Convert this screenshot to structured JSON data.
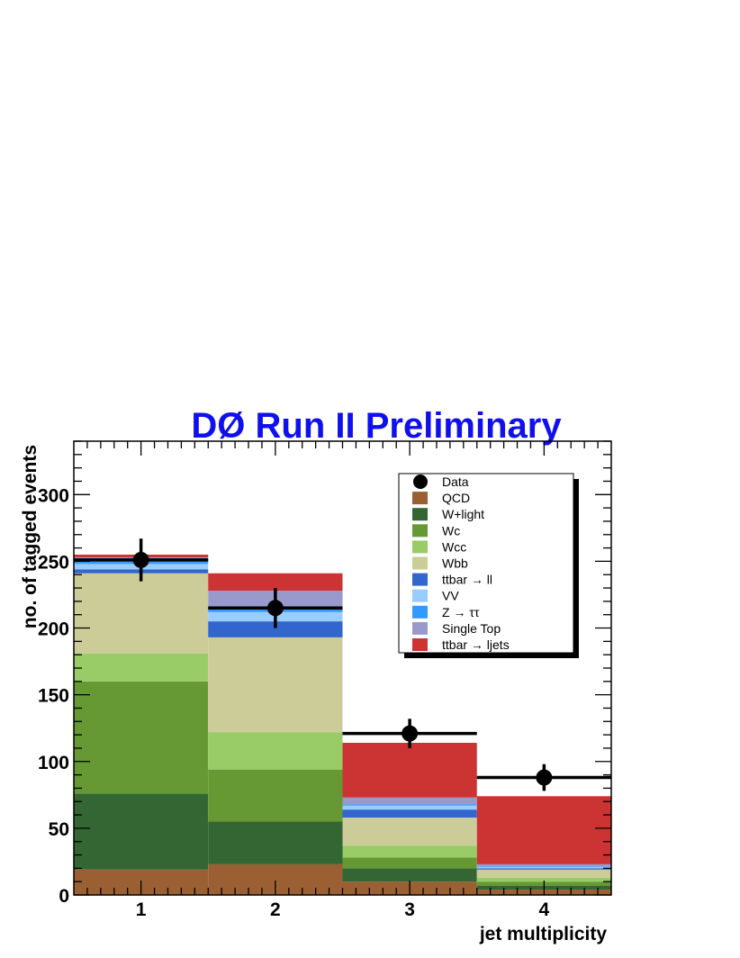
{
  "chart_data": {
    "type": "bar",
    "stacked": true,
    "title": "DØ Run II Preliminary",
    "xlabel": "jet multiplicity",
    "ylabel": "no. of tagged events",
    "categories": [
      "1",
      "2",
      "3",
      "4"
    ],
    "xlim": [
      0.5,
      4.5
    ],
    "ylim": [
      0,
      340
    ],
    "y_ticks": [
      0,
      50,
      100,
      150,
      200,
      250,
      300
    ],
    "legend_position": "top-right",
    "grid": false,
    "series": [
      {
        "name": "QCD",
        "color": "#9a6033",
        "values": [
          19,
          23,
          10,
          4
        ]
      },
      {
        "name": "W+light",
        "color": "#336633",
        "values": [
          57,
          32,
          10,
          3
        ]
      },
      {
        "name": "Wc",
        "color": "#669933",
        "values": [
          84,
          39,
          8,
          3
        ]
      },
      {
        "name": "Wcc",
        "color": "#99cc66",
        "values": [
          21,
          28,
          9,
          3
        ]
      },
      {
        "name": "Wbb",
        "color": "#cccc99",
        "values": [
          60,
          71,
          21,
          6
        ]
      },
      {
        "name": "ttbar → ll",
        "color": "#3366cc",
        "values": [
          3,
          12,
          6,
          1
        ]
      },
      {
        "name": "VV",
        "color": "#99ccff",
        "values": [
          4,
          7,
          3,
          1
        ]
      },
      {
        "name": "Z → ττ",
        "color": "#3399ff",
        "values": [
          3,
          4,
          1,
          0.5
        ]
      },
      {
        "name": "Single Top",
        "color": "#9999cc",
        "values": [
          2,
          12,
          5,
          1.5
        ]
      },
      {
        "name": "ttbar → ljets",
        "color": "#cc3333",
        "values": [
          2,
          13,
          41,
          51
        ]
      }
    ],
    "data_points": {
      "name": "Data",
      "x": [
        1,
        2,
        3,
        4
      ],
      "y": [
        251,
        215,
        121,
        88
      ],
      "yerr": [
        16,
        15,
        11,
        10
      ],
      "xerr": [
        0.5,
        0.5,
        0.5,
        0.5
      ]
    }
  }
}
